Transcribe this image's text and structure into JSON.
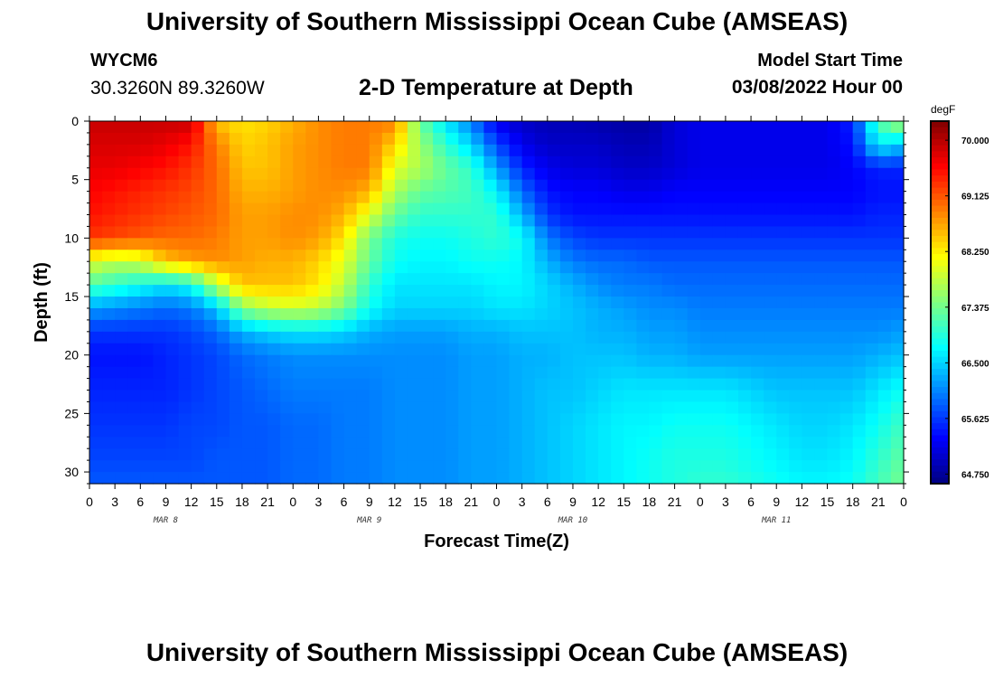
{
  "header": {
    "title": "University of Southern Mississippi Ocean Cube (AMSEAS)",
    "station_id": "WYCM6",
    "coordinates": "30.3260N  89.3260W",
    "subtitle": "2-D Temperature at Depth",
    "model_start_label": "Model Start Time",
    "model_start_value": "03/08/2022 Hour 00"
  },
  "footer": {
    "title": "University of Southern Mississippi Ocean Cube (AMSEAS)"
  },
  "chart_data": {
    "type": "heatmap",
    "title": "2-D Temperature at Depth",
    "xlabel": "Forecast Time(Z)",
    "ylabel": "Depth (ft)",
    "unit": "degF",
    "x_hours": [
      0,
      3,
      6,
      9,
      12,
      15,
      18,
      21,
      24,
      27,
      30,
      33,
      36,
      39,
      42,
      45,
      48,
      51,
      54,
      57,
      60,
      63,
      66,
      69,
      72,
      75,
      78,
      81,
      84,
      87,
      90,
      93,
      96
    ],
    "x_tick_labels": [
      "0",
      "3",
      "6",
      "9",
      "12",
      "15",
      "18",
      "21",
      "0",
      "3",
      "6",
      "9",
      "12",
      "15",
      "18",
      "21",
      "0",
      "3",
      "6",
      "9",
      "12",
      "15",
      "18",
      "21",
      "0",
      "3",
      "6",
      "9",
      "12",
      "15",
      "18",
      "21",
      "0"
    ],
    "day_labels": [
      "MAR 8",
      "MAR 9",
      "MAR 10",
      "MAR 11"
    ],
    "xlim": [
      0,
      96
    ],
    "y_depths": [
      0,
      2,
      4,
      6,
      8,
      10,
      12,
      14,
      16,
      18,
      20,
      23,
      26,
      29,
      31
    ],
    "y_ticks": [
      0,
      5,
      10,
      15,
      20,
      25,
      30
    ],
    "ylim": [
      31,
      0
    ],
    "z_values": [
      [
        69.9,
        69.9,
        69.9,
        69.9,
        69.9,
        68.5,
        68.3,
        68.4,
        68.6,
        68.8,
        68.9,
        68.9,
        68.9,
        67.3,
        66.6,
        66.0,
        65.2,
        65.0,
        64.9,
        64.9,
        64.85,
        64.8,
        64.8,
        65.1,
        65.2,
        65.2,
        65.2,
        65.2,
        65.2,
        65.2,
        65.5,
        67.2,
        67.8
      ],
      [
        69.8,
        69.8,
        69.8,
        69.7,
        69.5,
        68.9,
        68.4,
        68.5,
        68.7,
        68.8,
        68.9,
        68.9,
        68.4,
        67.6,
        67.0,
        66.5,
        65.7,
        65.2,
        65.0,
        65.0,
        65.0,
        64.9,
        64.9,
        65.1,
        65.2,
        65.2,
        65.2,
        65.2,
        65.2,
        65.2,
        65.4,
        66.7,
        66.4
      ],
      [
        69.7,
        69.7,
        69.6,
        69.5,
        69.3,
        69.0,
        68.5,
        68.5,
        68.7,
        68.8,
        68.9,
        68.9,
        68.0,
        67.7,
        67.3,
        67.0,
        66.2,
        65.5,
        65.2,
        65.1,
        65.1,
        65.0,
        65.0,
        65.1,
        65.2,
        65.2,
        65.2,
        65.2,
        65.2,
        65.2,
        65.3,
        65.5,
        65.5
      ],
      [
        69.6,
        69.5,
        69.4,
        69.3,
        69.2,
        69.0,
        68.6,
        68.6,
        68.7,
        68.8,
        68.8,
        68.6,
        67.7,
        67.3,
        67.2,
        67.1,
        66.7,
        65.9,
        65.4,
        65.3,
        65.3,
        65.2,
        65.2,
        65.3,
        65.3,
        65.3,
        65.3,
        65.3,
        65.3,
        65.3,
        65.3,
        65.4,
        65.4
      ],
      [
        69.5,
        69.4,
        69.3,
        69.2,
        69.1,
        69.0,
        68.7,
        68.7,
        68.8,
        68.8,
        68.6,
        68.0,
        67.3,
        67.0,
        67.0,
        67.0,
        67.0,
        66.3,
        65.6,
        65.4,
        65.4,
        65.4,
        65.4,
        65.4,
        65.4,
        65.4,
        65.4,
        65.4,
        65.4,
        65.4,
        65.4,
        65.5,
        65.5
      ],
      [
        69.3,
        69.2,
        69.1,
        69.0,
        69.0,
        68.9,
        68.7,
        68.7,
        68.8,
        68.7,
        68.3,
        67.4,
        66.9,
        66.8,
        66.8,
        66.9,
        67.0,
        66.8,
        66.0,
        65.7,
        65.6,
        65.6,
        65.6,
        65.6,
        65.6,
        65.6,
        65.6,
        65.6,
        65.6,
        65.6,
        65.6,
        65.6,
        65.6
      ],
      [
        68.0,
        67.8,
        67.9,
        68.5,
        68.7,
        68.8,
        68.7,
        68.6,
        68.6,
        68.4,
        68.0,
        67.3,
        66.8,
        66.7,
        66.7,
        66.8,
        66.8,
        66.7,
        66.3,
        66.0,
        65.9,
        65.9,
        65.8,
        65.8,
        65.8,
        65.8,
        65.8,
        65.8,
        65.8,
        65.8,
        65.8,
        65.8,
        65.8
      ],
      [
        67.2,
        67.0,
        66.8,
        66.6,
        66.8,
        67.8,
        68.5,
        68.5,
        68.5,
        68.3,
        67.8,
        67.0,
        66.6,
        66.6,
        66.6,
        66.6,
        66.7,
        66.7,
        66.5,
        66.3,
        66.1,
        66.0,
        66.0,
        65.9,
        65.9,
        65.9,
        65.9,
        65.9,
        65.9,
        65.9,
        65.9,
        65.9,
        65.9
      ],
      [
        66.2,
        66.1,
        66.0,
        65.9,
        66.0,
        66.4,
        67.5,
        67.8,
        67.9,
        67.8,
        67.4,
        66.8,
        66.5,
        66.5,
        66.5,
        66.5,
        66.6,
        66.6,
        66.5,
        66.4,
        66.3,
        66.2,
        66.1,
        66.1,
        66.0,
        66.0,
        66.0,
        66.0,
        66.0,
        66.0,
        66.0,
        66.0,
        66.0
      ],
      [
        65.6,
        65.6,
        65.6,
        65.6,
        65.7,
        65.9,
        66.3,
        66.5,
        66.6,
        66.6,
        66.5,
        66.3,
        66.2,
        66.2,
        66.2,
        66.3,
        66.3,
        66.4,
        66.4,
        66.4,
        66.3,
        66.3,
        66.2,
        66.2,
        66.1,
        66.1,
        66.1,
        66.1,
        66.1,
        66.1,
        66.1,
        66.1,
        66.2
      ],
      [
        65.4,
        65.4,
        65.4,
        65.5,
        65.6,
        65.7,
        65.9,
        66.0,
        66.1,
        66.1,
        66.1,
        66.1,
        66.1,
        66.1,
        66.1,
        66.2,
        66.2,
        66.3,
        66.3,
        66.4,
        66.4,
        66.4,
        66.3,
        66.3,
        66.2,
        66.2,
        66.2,
        66.2,
        66.2,
        66.2,
        66.2,
        66.3,
        66.4
      ],
      [
        65.5,
        65.5,
        65.5,
        65.5,
        65.6,
        65.7,
        65.8,
        65.9,
        66.0,
        66.0,
        66.0,
        66.0,
        66.1,
        66.1,
        66.1,
        66.2,
        66.2,
        66.3,
        66.4,
        66.4,
        66.5,
        66.6,
        66.6,
        66.6,
        66.6,
        66.6,
        66.5,
        66.4,
        66.4,
        66.4,
        66.4,
        66.6,
        66.8
      ],
      [
        65.6,
        65.6,
        65.6,
        65.6,
        65.7,
        65.7,
        65.8,
        65.8,
        65.9,
        65.9,
        66.0,
        66.0,
        66.1,
        66.1,
        66.1,
        66.2,
        66.2,
        66.3,
        66.4,
        66.5,
        66.6,
        66.7,
        66.7,
        66.8,
        66.8,
        66.8,
        66.7,
        66.6,
        66.5,
        66.5,
        66.6,
        66.8,
        67.1
      ],
      [
        65.7,
        65.7,
        65.7,
        65.7,
        65.7,
        65.8,
        65.8,
        65.8,
        65.9,
        65.9,
        66.0,
        66.0,
        66.1,
        66.1,
        66.1,
        66.2,
        66.2,
        66.3,
        66.4,
        66.5,
        66.6,
        66.7,
        66.8,
        66.9,
        66.9,
        66.9,
        66.8,
        66.7,
        66.6,
        66.6,
        66.7,
        67.0,
        67.3
      ],
      [
        65.8,
        65.8,
        65.8,
        65.8,
        65.8,
        65.8,
        65.8,
        65.8,
        65.9,
        65.9,
        66.0,
        66.0,
        66.1,
        66.1,
        66.1,
        66.2,
        66.2,
        66.3,
        66.4,
        66.5,
        66.6,
        66.7,
        66.8,
        66.9,
        67.0,
        67.0,
        66.9,
        66.8,
        66.7,
        66.7,
        66.8,
        67.1,
        67.4
      ]
    ],
    "colorbar": {
      "min": 64.6,
      "max": 70.3,
      "tick_values": [
        70.0,
        69.125,
        68.25,
        67.375,
        66.5,
        65.625,
        64.75
      ],
      "tick_labels": [
        "70.000",
        "69.125",
        "68.250",
        "67.375",
        "66.500",
        "65.625",
        "64.750"
      ],
      "colormap": "jet"
    }
  }
}
